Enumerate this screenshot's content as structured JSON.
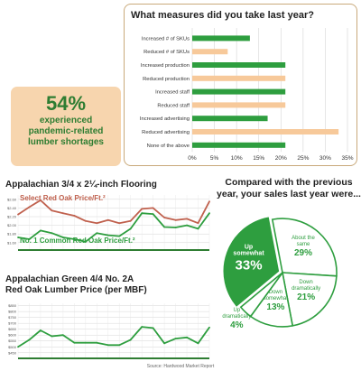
{
  "colors": {
    "green": "#2e9e3f",
    "peach": "#f7c99a",
    "select_line": "#c0614e",
    "common_line": "#2e9e3f",
    "grid": "#d6d6d6",
    "panel_border": "#c9a97a",
    "stat_bg": "#f7d5ae"
  },
  "stat": {
    "value": "54%",
    "caption": "experienced pandemic-related lumber shortages"
  },
  "comparison_title": "Compared with the previous year, your sales last year were...",
  "source": "Source: Hardwood Market Report",
  "chart_data": [
    {
      "type": "bar",
      "orientation": "horizontal",
      "title": "What measures did you take last year?",
      "categories": [
        "Increased # of SKUs",
        "Reduced # of SKUs",
        "Increased production",
        "Reduced production",
        "Increased staff",
        "Reduced staff",
        "Increased advertising",
        "Reduced advertising",
        "None of the above"
      ],
      "values": [
        13,
        8,
        21,
        21,
        21,
        21,
        17,
        33,
        21
      ],
      "bar_colors": [
        "green",
        "peach",
        "green",
        "peach",
        "green",
        "peach",
        "green",
        "peach",
        "green"
      ],
      "xlim": [
        0,
        35
      ],
      "ticks": [
        "0%",
        "5%",
        "10%",
        "15%",
        "20%",
        "25%",
        "30%",
        "35%"
      ],
      "grid": true
    },
    {
      "type": "line",
      "title": "Appalachian 3/4 x 2¼-inch Flooring",
      "ylim": [
        1.45,
        2.7
      ],
      "yticks": [
        "$2.60",
        "$2.40",
        "$2.20",
        "$2.00",
        "$1.80",
        "$1.60"
      ],
      "series": [
        {
          "name": "Select Red Oak Price/Ft.²",
          "values": [
            2.25,
            2.42,
            2.58,
            2.34,
            2.28,
            2.22,
            2.1,
            2.05,
            2.12,
            2.05,
            2.1,
            2.38,
            2.4,
            2.18,
            2.12,
            2.15,
            2.05,
            2.55
          ]
        },
        {
          "name": "No. 1 Common Red Oak Price/Ft.²",
          "values": [
            1.72,
            1.68,
            1.88,
            1.82,
            1.72,
            1.68,
            1.62,
            1.82,
            1.77,
            1.75,
            1.92,
            2.28,
            2.26,
            1.96,
            1.95,
            2.0,
            1.92,
            2.28
          ]
        }
      ],
      "grid": true
    },
    {
      "type": "line",
      "title": "Appalachian Green 4/4 No. 2A Red Oak Lumber Price (per MBF)",
      "ylim": [
        410,
        870
      ],
      "yticks": [
        "$850",
        "$800",
        "$750",
        "$700",
        "$650",
        "$600",
        "$550",
        "$500",
        "$450"
      ],
      "series": [
        {
          "name": "",
          "values": [
            500,
            560,
            640,
            590,
            600,
            535,
            535,
            535,
            515,
            515,
            560,
            670,
            660,
            530,
            570,
            580,
            530,
            665
          ]
        }
      ],
      "grid": true
    },
    {
      "type": "pie",
      "slices": [
        {
          "label": "About the same",
          "value": 29,
          "display": "29%",
          "fill": "white"
        },
        {
          "label": "Down dramatically",
          "value": 21,
          "display": "21%",
          "fill": "white"
        },
        {
          "label": "Down somewhat",
          "value": 13,
          "display": "13%",
          "fill": "white"
        },
        {
          "label": "Up dramatically",
          "value": 4,
          "display": "4%",
          "fill": "white"
        },
        {
          "label": "Up somewhat",
          "value": 33,
          "display": "33%",
          "fill": "green"
        }
      ]
    }
  ]
}
